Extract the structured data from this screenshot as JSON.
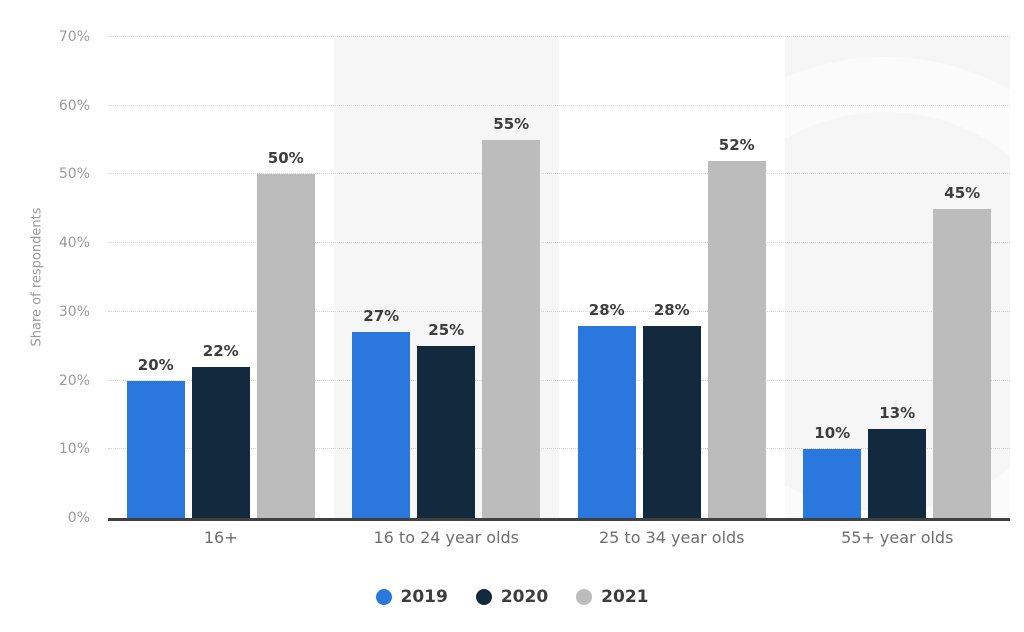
{
  "chart_data": {
    "type": "bar",
    "title": "",
    "ylabel": "Share of respondents",
    "xlabel": "",
    "ylim": [
      0,
      70
    ],
    "yticks": [
      {
        "value": 0,
        "label": "0%"
      },
      {
        "value": 10,
        "label": "10%"
      },
      {
        "value": 20,
        "label": "20%"
      },
      {
        "value": 30,
        "label": "30%"
      },
      {
        "value": 40,
        "label": "40%"
      },
      {
        "value": 50,
        "label": "50%"
      },
      {
        "value": 60,
        "label": "60%"
      },
      {
        "value": 70,
        "label": "70%"
      }
    ],
    "grid": "horizontal-dotted",
    "legend_position": "bottom",
    "value_suffix": "%",
    "band_fill": "#f6f6f6",
    "shaded_band_indexes": [
      1,
      3
    ],
    "categories": [
      "16+",
      "16 to 24 year olds",
      "25 to 34 year olds",
      "55+ year olds"
    ],
    "series": [
      {
        "name": "2019",
        "color": "#2a77dd",
        "values": [
          20,
          27,
          28,
          10
        ]
      },
      {
        "name": "2020",
        "color": "#13293e",
        "values": [
          22,
          25,
          28,
          13
        ]
      },
      {
        "name": "2021",
        "color": "#bcbcbc",
        "values": [
          50,
          55,
          52,
          45
        ]
      }
    ]
  }
}
